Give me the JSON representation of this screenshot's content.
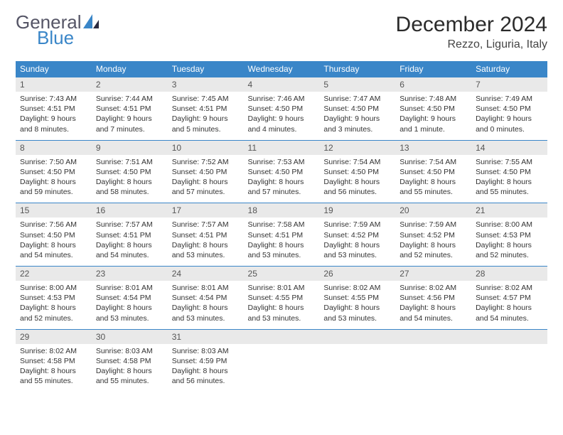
{
  "brand": {
    "word1": "General",
    "word2": "Blue"
  },
  "title": "December 2024",
  "location": "Rezzo, Liguria, Italy",
  "colors": {
    "header_bg": "#3a86c8",
    "header_text": "#ffffff",
    "daynum_bg": "#e9e9e9",
    "row_border": "#3a86c8",
    "text": "#333333",
    "brand_gray": "#555566",
    "brand_blue": "#3a86c8"
  },
  "weekday_headers": [
    "Sunday",
    "Monday",
    "Tuesday",
    "Wednesday",
    "Thursday",
    "Friday",
    "Saturday"
  ],
  "weeks": [
    [
      {
        "n": "1",
        "sr": "Sunrise: 7:43 AM",
        "ss": "Sunset: 4:51 PM",
        "d1": "Daylight: 9 hours",
        "d2": "and 8 minutes."
      },
      {
        "n": "2",
        "sr": "Sunrise: 7:44 AM",
        "ss": "Sunset: 4:51 PM",
        "d1": "Daylight: 9 hours",
        "d2": "and 7 minutes."
      },
      {
        "n": "3",
        "sr": "Sunrise: 7:45 AM",
        "ss": "Sunset: 4:51 PM",
        "d1": "Daylight: 9 hours",
        "d2": "and 5 minutes."
      },
      {
        "n": "4",
        "sr": "Sunrise: 7:46 AM",
        "ss": "Sunset: 4:50 PM",
        "d1": "Daylight: 9 hours",
        "d2": "and 4 minutes."
      },
      {
        "n": "5",
        "sr": "Sunrise: 7:47 AM",
        "ss": "Sunset: 4:50 PM",
        "d1": "Daylight: 9 hours",
        "d2": "and 3 minutes."
      },
      {
        "n": "6",
        "sr": "Sunrise: 7:48 AM",
        "ss": "Sunset: 4:50 PM",
        "d1": "Daylight: 9 hours",
        "d2": "and 1 minute."
      },
      {
        "n": "7",
        "sr": "Sunrise: 7:49 AM",
        "ss": "Sunset: 4:50 PM",
        "d1": "Daylight: 9 hours",
        "d2": "and 0 minutes."
      }
    ],
    [
      {
        "n": "8",
        "sr": "Sunrise: 7:50 AM",
        "ss": "Sunset: 4:50 PM",
        "d1": "Daylight: 8 hours",
        "d2": "and 59 minutes."
      },
      {
        "n": "9",
        "sr": "Sunrise: 7:51 AM",
        "ss": "Sunset: 4:50 PM",
        "d1": "Daylight: 8 hours",
        "d2": "and 58 minutes."
      },
      {
        "n": "10",
        "sr": "Sunrise: 7:52 AM",
        "ss": "Sunset: 4:50 PM",
        "d1": "Daylight: 8 hours",
        "d2": "and 57 minutes."
      },
      {
        "n": "11",
        "sr": "Sunrise: 7:53 AM",
        "ss": "Sunset: 4:50 PM",
        "d1": "Daylight: 8 hours",
        "d2": "and 57 minutes."
      },
      {
        "n": "12",
        "sr": "Sunrise: 7:54 AM",
        "ss": "Sunset: 4:50 PM",
        "d1": "Daylight: 8 hours",
        "d2": "and 56 minutes."
      },
      {
        "n": "13",
        "sr": "Sunrise: 7:54 AM",
        "ss": "Sunset: 4:50 PM",
        "d1": "Daylight: 8 hours",
        "d2": "and 55 minutes."
      },
      {
        "n": "14",
        "sr": "Sunrise: 7:55 AM",
        "ss": "Sunset: 4:50 PM",
        "d1": "Daylight: 8 hours",
        "d2": "and 55 minutes."
      }
    ],
    [
      {
        "n": "15",
        "sr": "Sunrise: 7:56 AM",
        "ss": "Sunset: 4:50 PM",
        "d1": "Daylight: 8 hours",
        "d2": "and 54 minutes."
      },
      {
        "n": "16",
        "sr": "Sunrise: 7:57 AM",
        "ss": "Sunset: 4:51 PM",
        "d1": "Daylight: 8 hours",
        "d2": "and 54 minutes."
      },
      {
        "n": "17",
        "sr": "Sunrise: 7:57 AM",
        "ss": "Sunset: 4:51 PM",
        "d1": "Daylight: 8 hours",
        "d2": "and 53 minutes."
      },
      {
        "n": "18",
        "sr": "Sunrise: 7:58 AM",
        "ss": "Sunset: 4:51 PM",
        "d1": "Daylight: 8 hours",
        "d2": "and 53 minutes."
      },
      {
        "n": "19",
        "sr": "Sunrise: 7:59 AM",
        "ss": "Sunset: 4:52 PM",
        "d1": "Daylight: 8 hours",
        "d2": "and 53 minutes."
      },
      {
        "n": "20",
        "sr": "Sunrise: 7:59 AM",
        "ss": "Sunset: 4:52 PM",
        "d1": "Daylight: 8 hours",
        "d2": "and 52 minutes."
      },
      {
        "n": "21",
        "sr": "Sunrise: 8:00 AM",
        "ss": "Sunset: 4:53 PM",
        "d1": "Daylight: 8 hours",
        "d2": "and 52 minutes."
      }
    ],
    [
      {
        "n": "22",
        "sr": "Sunrise: 8:00 AM",
        "ss": "Sunset: 4:53 PM",
        "d1": "Daylight: 8 hours",
        "d2": "and 52 minutes."
      },
      {
        "n": "23",
        "sr": "Sunrise: 8:01 AM",
        "ss": "Sunset: 4:54 PM",
        "d1": "Daylight: 8 hours",
        "d2": "and 53 minutes."
      },
      {
        "n": "24",
        "sr": "Sunrise: 8:01 AM",
        "ss": "Sunset: 4:54 PM",
        "d1": "Daylight: 8 hours",
        "d2": "and 53 minutes."
      },
      {
        "n": "25",
        "sr": "Sunrise: 8:01 AM",
        "ss": "Sunset: 4:55 PM",
        "d1": "Daylight: 8 hours",
        "d2": "and 53 minutes."
      },
      {
        "n": "26",
        "sr": "Sunrise: 8:02 AM",
        "ss": "Sunset: 4:55 PM",
        "d1": "Daylight: 8 hours",
        "d2": "and 53 minutes."
      },
      {
        "n": "27",
        "sr": "Sunrise: 8:02 AM",
        "ss": "Sunset: 4:56 PM",
        "d1": "Daylight: 8 hours",
        "d2": "and 54 minutes."
      },
      {
        "n": "28",
        "sr": "Sunrise: 8:02 AM",
        "ss": "Sunset: 4:57 PM",
        "d1": "Daylight: 8 hours",
        "d2": "and 54 minutes."
      }
    ],
    [
      {
        "n": "29",
        "sr": "Sunrise: 8:02 AM",
        "ss": "Sunset: 4:58 PM",
        "d1": "Daylight: 8 hours",
        "d2": "and 55 minutes."
      },
      {
        "n": "30",
        "sr": "Sunrise: 8:03 AM",
        "ss": "Sunset: 4:58 PM",
        "d1": "Daylight: 8 hours",
        "d2": "and 55 minutes."
      },
      {
        "n": "31",
        "sr": "Sunrise: 8:03 AM",
        "ss": "Sunset: 4:59 PM",
        "d1": "Daylight: 8 hours",
        "d2": "and 56 minutes."
      },
      null,
      null,
      null,
      null
    ]
  ]
}
